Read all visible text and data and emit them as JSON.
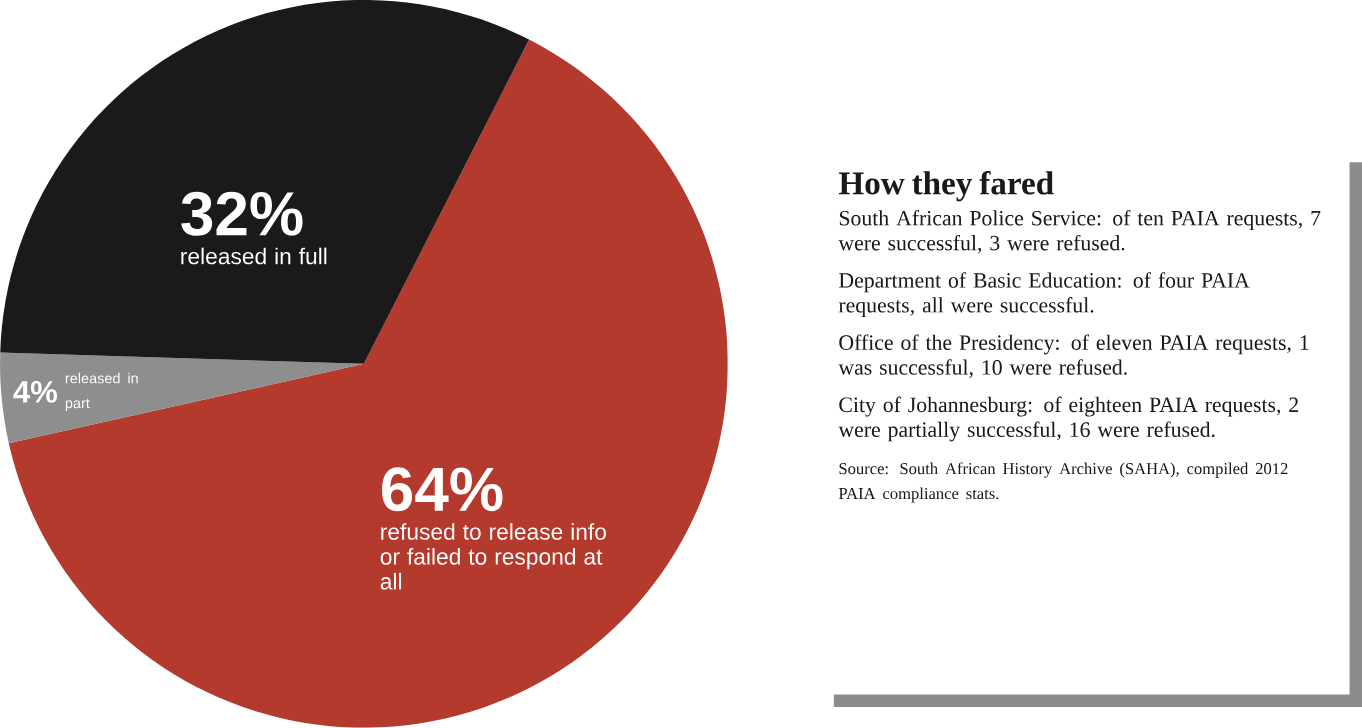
{
  "chart_data": [
    {
      "type": "pie",
      "categories": [
        "refused to release info or failed to respond at all",
        "released in part",
        "released in full"
      ],
      "values": [
        64,
        4,
        32
      ],
      "value_labels": [
        "64%",
        "4%",
        "32%"
      ],
      "colors": [
        "#b43a2d",
        "#8e8e8e",
        "#1b1919"
      ]
    },
    {
      "type": "other",
      "title": "How they fared",
      "annotations": [
        "South African Police Service: of ten PAIA requests, 7 were successful, 3 were refused.",
        "Department of Basic Education: of four PAIA requests, all were successful.",
        "Office of the Presidency: of eleven PAIA requests, 1 was successful, 10 were refused.",
        "City of Johannesburg: of eighteen PAIA requests, 2 were partially successful, 16 were refused.",
        "Source: South African History Archive (SAHA), compiled 2012 PAIA compliance stats."
      ]
    }
  ]
}
